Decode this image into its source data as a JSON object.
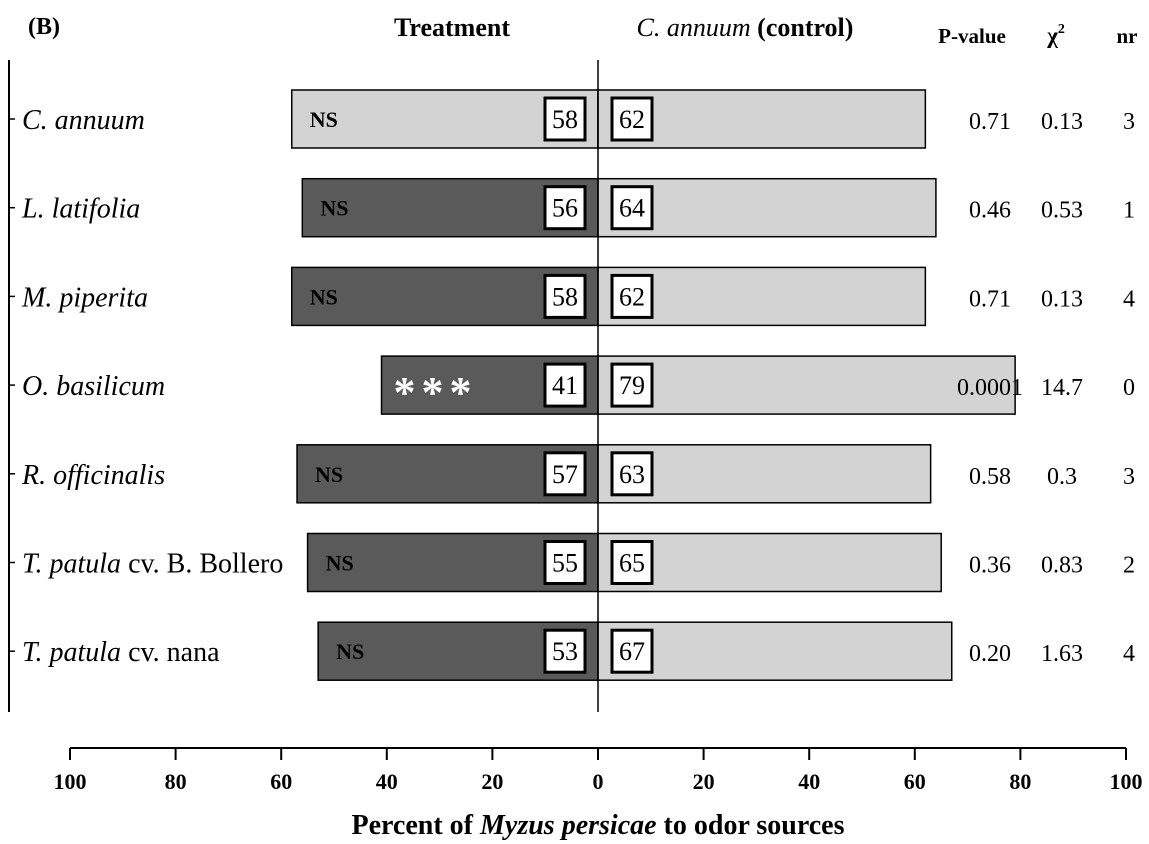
{
  "header": {
    "panel_label": "(B)",
    "treatment": "Treatment",
    "control_species": "C. annuum",
    "control_suffix": "(control)",
    "p_value": "P-value",
    "chi_symbol": "χ",
    "chi_exponent": "2",
    "nr": "nr"
  },
  "axis": {
    "xlabel_prefix": "Percent of ",
    "xlabel_species": "Myzus persicae",
    "xlabel_suffix": " to odor sources"
  },
  "chart_data": {
    "type": "bar",
    "orientation": "horizontal-diverging",
    "xlim": [
      -100,
      100
    ],
    "x_tick_values": [
      -100,
      -80,
      -60,
      -40,
      -20,
      0,
      20,
      40,
      60,
      80,
      100
    ],
    "x_tick_labels": [
      "100",
      "80",
      "60",
      "40",
      "20",
      "0",
      "20",
      "40",
      "60",
      "80",
      "100"
    ],
    "colors": {
      "treatment": "#5a5a5a",
      "control": "#d3d3d3",
      "treatment_control_same": "#d3d3d3"
    },
    "rows": [
      {
        "species": "C. annuum",
        "cultivar": "",
        "treatment_pct": 58,
        "control_pct": 62,
        "treatment_label": "58",
        "control_label": "62",
        "significance": "NS",
        "p_value": "0.71",
        "chi2": "0.13",
        "nr": "3",
        "treatment_is_control": true
      },
      {
        "species": "L. latifolia",
        "cultivar": "",
        "treatment_pct": 56,
        "control_pct": 64,
        "treatment_label": "56",
        "control_label": "64",
        "significance": "NS",
        "p_value": "0.46",
        "chi2": "0.53",
        "nr": "1",
        "treatment_is_control": false
      },
      {
        "species": "M. piperita",
        "cultivar": "",
        "treatment_pct": 58,
        "control_pct": 62,
        "treatment_label": "58",
        "control_label": "62",
        "significance": "NS",
        "p_value": "0.71",
        "chi2": "0.13",
        "nr": "4",
        "treatment_is_control": false
      },
      {
        "species": "O. basilicum",
        "cultivar": "",
        "treatment_pct": 41,
        "control_pct": 79,
        "treatment_label": "41",
        "control_label": "79",
        "significance": "***",
        "p_value": "0.0001",
        "chi2": "14.7",
        "nr": "0",
        "treatment_is_control": false
      },
      {
        "species": "R. officinalis",
        "cultivar": "",
        "treatment_pct": 57,
        "control_pct": 63,
        "treatment_label": "57",
        "control_label": "63",
        "significance": "NS",
        "p_value": "0.58",
        "chi2": "0.3",
        "nr": "3",
        "treatment_is_control": false
      },
      {
        "species": "T. patula",
        "cultivar": " cv. B. Bollero",
        "treatment_pct": 55,
        "control_pct": 65,
        "treatment_label": "55",
        "control_label": "65",
        "significance": "NS",
        "p_value": "0.36",
        "chi2": "0.83",
        "nr": "2",
        "treatment_is_control": false
      },
      {
        "species": "T. patula",
        "cultivar": " cv. nana",
        "treatment_pct": 53,
        "control_pct": 67,
        "treatment_label": "53",
        "control_label": "67",
        "significance": "NS",
        "p_value": "0.20",
        "chi2": "1.63",
        "nr": "4",
        "treatment_is_control": false
      }
    ]
  }
}
